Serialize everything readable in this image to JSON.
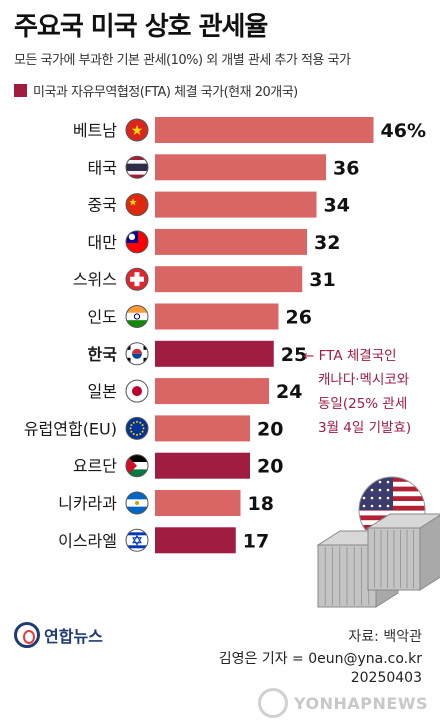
{
  "header": {
    "title": "주요국 미국 상호 관세율",
    "subtitle": "모든 국가에 부과한 기본 관세(10%) 외 개별 관세 추가 적용 국가",
    "legend": "미국과 자유무역협정(FTA) 체결 국가(현재 20개국)"
  },
  "chart_data": {
    "type": "bar",
    "orientation": "horizontal",
    "categories": [
      "베트남",
      "태국",
      "중국",
      "대만",
      "스위스",
      "인도",
      "한국",
      "일본",
      "유럽연합(EU)",
      "요르단",
      "니카라과",
      "이스라엘"
    ],
    "values": [
      46,
      36,
      34,
      32,
      31,
      26,
      25,
      24,
      20,
      20,
      18,
      17
    ],
    "value_labels": [
      "46%",
      "36",
      "34",
      "32",
      "31",
      "26",
      "25",
      "24",
      "20",
      "20",
      "18",
      "17"
    ],
    "fta": [
      false,
      false,
      false,
      false,
      false,
      false,
      true,
      false,
      false,
      true,
      false,
      true
    ],
    "flags": [
      "vietnam-flag",
      "thailand-flag",
      "china-flag",
      "taiwan-flag",
      "switzerland-flag",
      "india-flag",
      "korea-flag",
      "japan-flag",
      "eu-flag",
      "jordan-flag",
      "nicaragua-flag",
      "israel-flag"
    ],
    "colors": {
      "default": "#d96565",
      "fta": "#a01c40"
    },
    "annotation": [
      "← FTA 체결국인",
      "캐나다·멕시코와",
      "동일(25% 관세",
      "3월 4일 기발효)"
    ],
    "grid": false
  },
  "footer": {
    "logo_text": "연합뉴스",
    "source": "자료: 백악관",
    "credit_line1": "김영은 기자 = 0eun@yna.co.kr",
    "credit_line2": "20250403",
    "watermark": "YONHAPNEWS"
  }
}
